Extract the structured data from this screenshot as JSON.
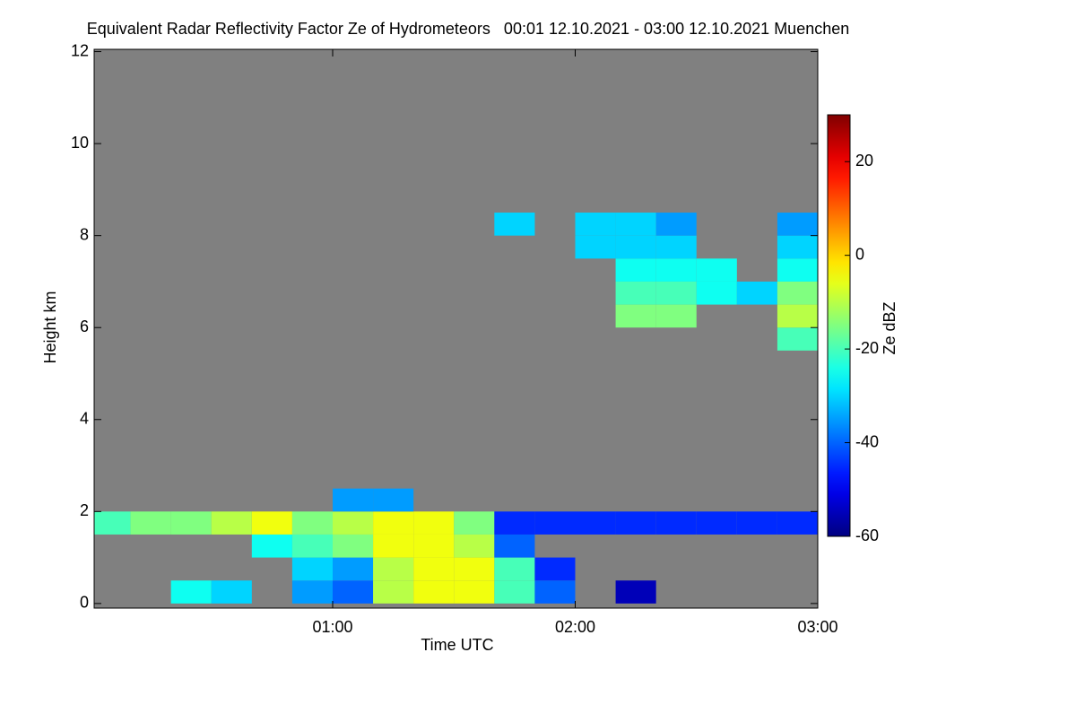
{
  "chart_data": {
    "type": "heatmap",
    "title": "Equivalent Radar Reflectivity Factor Ze of Hydrometeors   00:01 12.10.2021 - 03:00 12.10.2021 Muenchen",
    "x_label": "Time UTC",
    "y_label": "Height km",
    "colorbar_label": "Ze dBZ",
    "xlim": [
      1,
      180
    ],
    "ylim": [
      -0.1,
      12.05
    ],
    "xticks": [
      {
        "value": 60,
        "label": "01:00"
      },
      {
        "value": 120,
        "label": "02:00"
      },
      {
        "value": 180,
        "label": "03:00"
      }
    ],
    "yticks": [
      0,
      2,
      4,
      6,
      8,
      10,
      12
    ],
    "clim": [
      -60,
      30
    ],
    "cticks": [
      -60,
      -40,
      -20,
      0,
      20
    ],
    "background": "#808080",
    "x": [
      1,
      10,
      20,
      30,
      40,
      50,
      60,
      70,
      80,
      90,
      100,
      110,
      120,
      130,
      140,
      150,
      160,
      170,
      180
    ],
    "y": [
      0,
      0.5,
      1,
      1.5,
      2,
      2.5,
      3,
      3.5,
      4,
      4.5,
      5,
      5.5,
      6,
      6.5,
      7,
      7.5,
      8,
      8.5,
      9
    ],
    "z": [
      [
        null,
        null,
        -25,
        -30,
        null,
        -35,
        -40,
        -10,
        -5,
        -5,
        -20,
        -40,
        null,
        -55,
        null,
        null,
        null,
        null
      ],
      [
        null,
        null,
        null,
        null,
        null,
        -30,
        -35,
        -10,
        -5,
        -5,
        -20,
        -45,
        null,
        null,
        null,
        null,
        null,
        null
      ],
      [
        null,
        null,
        null,
        null,
        -25,
        -20,
        -15,
        -5,
        -5,
        -10,
        -40,
        null,
        null,
        null,
        null,
        null,
        null,
        null
      ],
      [
        -20,
        -15,
        -15,
        -10,
        -5,
        -15,
        -10,
        -5,
        -5,
        -15,
        -45,
        -45,
        -45,
        -45,
        -45,
        -45,
        -45,
        -45
      ],
      [
        null,
        null,
        null,
        null,
        null,
        null,
        -35,
        -35,
        null,
        null,
        null,
        null,
        null,
        null,
        null,
        null,
        null,
        null
      ],
      [
        null,
        null,
        null,
        null,
        null,
        null,
        null,
        null,
        null,
        null,
        null,
        null,
        null,
        null,
        null,
        null,
        null,
        null
      ],
      [
        null,
        null,
        null,
        null,
        null,
        null,
        null,
        null,
        null,
        null,
        null,
        null,
        null,
        null,
        null,
        null,
        null,
        null
      ],
      [
        null,
        null,
        null,
        null,
        null,
        null,
        null,
        null,
        null,
        null,
        null,
        null,
        null,
        null,
        null,
        null,
        null,
        null
      ],
      [
        null,
        null,
        null,
        null,
        null,
        null,
        null,
        null,
        null,
        null,
        null,
        null,
        null,
        null,
        null,
        null,
        null,
        null
      ],
      [
        null,
        null,
        null,
        null,
        null,
        null,
        null,
        null,
        null,
        null,
        null,
        null,
        null,
        null,
        null,
        null,
        null,
        null
      ],
      [
        null,
        null,
        null,
        null,
        null,
        null,
        null,
        null,
        null,
        null,
        null,
        null,
        null,
        null,
        null,
        null,
        null,
        null
      ],
      [
        null,
        null,
        null,
        null,
        null,
        null,
        null,
        null,
        null,
        null,
        null,
        null,
        null,
        null,
        null,
        null,
        null,
        -20
      ],
      [
        null,
        null,
        null,
        null,
        null,
        null,
        null,
        null,
        null,
        null,
        null,
        null,
        null,
        -15,
        -15,
        null,
        null,
        -10
      ],
      [
        null,
        null,
        null,
        null,
        null,
        null,
        null,
        null,
        null,
        null,
        null,
        null,
        null,
        -20,
        -20,
        -25,
        -30,
        -15
      ],
      [
        null,
        null,
        null,
        null,
        null,
        null,
        null,
        null,
        null,
        null,
        null,
        null,
        null,
        -25,
        -25,
        -25,
        null,
        -25
      ],
      [
        null,
        null,
        null,
        null,
        null,
        null,
        null,
        null,
        null,
        null,
        null,
        null,
        -30,
        -30,
        -30,
        null,
        null,
        -30
      ],
      [
        null,
        null,
        null,
        null,
        null,
        null,
        null,
        null,
        null,
        null,
        -30,
        null,
        -30,
        -30,
        -35,
        null,
        null,
        -35
      ],
      [
        null,
        null,
        null,
        null,
        null,
        null,
        null,
        null,
        null,
        null,
        null,
        null,
        null,
        null,
        null,
        null,
        null,
        null
      ]
    ]
  }
}
